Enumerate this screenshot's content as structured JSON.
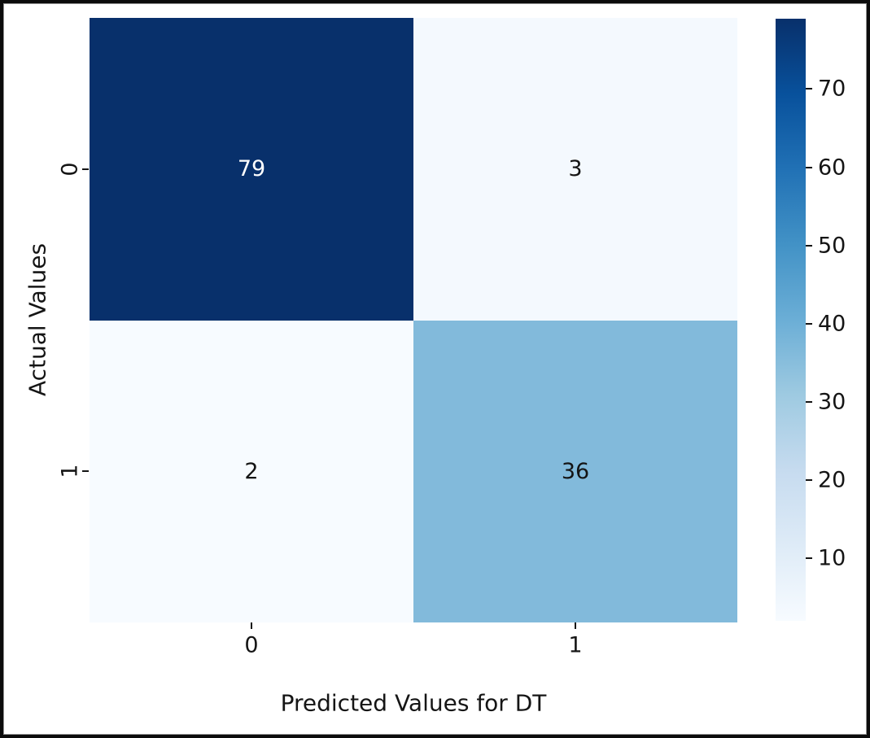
{
  "figure": {
    "background": "#ffffff",
    "border_color": "#0b0b0b",
    "inner_hairline_color": "#8f8f8f",
    "text_color": "#151515"
  },
  "chart_data": {
    "type": "heatmap",
    "title": "",
    "xlabel": "Predicted Values for DT",
    "ylabel": "Actual Values",
    "x_tick_labels": [
      "0",
      "1"
    ],
    "y_tick_labels": [
      "0",
      "1"
    ],
    "matrix": [
      [
        79,
        3
      ],
      [
        2,
        36
      ]
    ],
    "vmin": 2,
    "vmax": 79,
    "colormap": "Blues",
    "colormap_stops": [
      "#f7fbff",
      "#deebf7",
      "#c6dbef",
      "#9ecae1",
      "#6baed6",
      "#4292c6",
      "#2171b5",
      "#08519c",
      "#08306b"
    ],
    "cell_colors": [
      [
        "#08306b",
        "#f4f9fe"
      ],
      [
        "#f7fbff",
        "#82badb"
      ]
    ],
    "cell_text_colors": [
      [
        "#ffffff",
        "#141414"
      ],
      [
        "#141414",
        "#141414"
      ]
    ],
    "colorbar_ticks": [
      10,
      20,
      30,
      40,
      50,
      60,
      70
    ],
    "colorbar_position": "right",
    "grid": false
  }
}
